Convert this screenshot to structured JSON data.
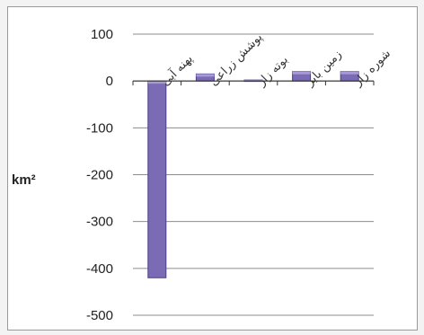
{
  "chart_data": {
    "type": "bar",
    "categories": [
      "پهنه آبی",
      "پوشش زراعی",
      "بوته زار",
      "زمین بایر",
      "شوره زار"
    ],
    "values": [
      -420,
      15,
      2,
      20,
      20
    ],
    "ylim": [
      -500,
      100
    ],
    "yticks": [
      100,
      0,
      -100,
      -200,
      -300,
      -400,
      -500
    ],
    "ylabel": "km²",
    "grid": true,
    "colors": {
      "bar": "#7b6bb4",
      "bar_edge": "#4b3f86",
      "bar_cap": "#a89ad8"
    }
  }
}
